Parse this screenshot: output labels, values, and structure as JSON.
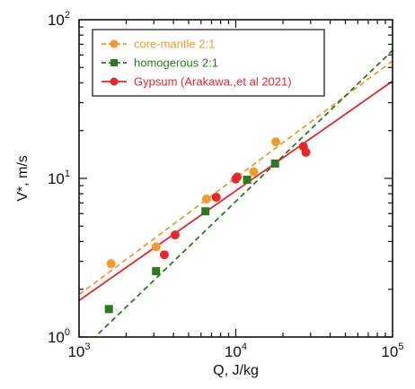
{
  "chart_data": {
    "type": "scatter",
    "title": "",
    "xlabel": "Q, J/kg",
    "ylabel": "V*, m/s",
    "xscale": "log",
    "yscale": "log",
    "xlim": [
      1000,
      100000
    ],
    "ylim": [
      1,
      100
    ],
    "x_ticks": [
      {
        "value": 1000,
        "base": "10",
        "exp": "3"
      },
      {
        "value": 10000,
        "base": "10",
        "exp": "4"
      },
      {
        "value": 100000,
        "base": "10",
        "exp": "5"
      }
    ],
    "y_ticks": [
      {
        "value": 1,
        "base": "10",
        "exp": "0"
      },
      {
        "value": 10,
        "base": "10",
        "exp": "1"
      },
      {
        "value": 100,
        "base": "10",
        "exp": "2"
      }
    ],
    "grid": false,
    "legend_position": "top-left",
    "series": [
      {
        "name": "core-mantle 2:1",
        "color": "#f39a2a",
        "marker": "circle",
        "line": "dashed",
        "points": [
          [
            1600,
            2.9
          ],
          [
            3100,
            3.7
          ],
          [
            6500,
            7.4
          ],
          [
            13000,
            11.0
          ],
          [
            18000,
            17.0
          ]
        ],
        "fit": [
          [
            1000,
            1.85
          ],
          [
            100000,
            55
          ]
        ]
      },
      {
        "name": "homogerous 2:1",
        "color": "#2a7a1f",
        "marker": "square",
        "line": "dashed",
        "points": [
          [
            1550,
            1.5
          ],
          [
            3100,
            2.6
          ],
          [
            6400,
            6.2
          ],
          [
            11800,
            9.8
          ],
          [
            17800,
            12.4
          ]
        ],
        "fit": [
          [
            1000,
            0.8
          ],
          [
            100000,
            64
          ]
        ]
      },
      {
        "name": "Gypsum (Arakawa.,et al 2021)",
        "color": "#e8262b",
        "marker": "circle",
        "line": "solid",
        "points": [
          [
            3500,
            3.3
          ],
          [
            4100,
            4.4
          ],
          [
            7500,
            7.6
          ],
          [
            10000,
            9.9
          ],
          [
            10200,
            10.2
          ],
          [
            27000,
            15.9
          ],
          [
            28000,
            14.6
          ]
        ],
        "fit": [
          [
            1000,
            1.7
          ],
          [
            100000,
            41
          ]
        ]
      }
    ]
  }
}
